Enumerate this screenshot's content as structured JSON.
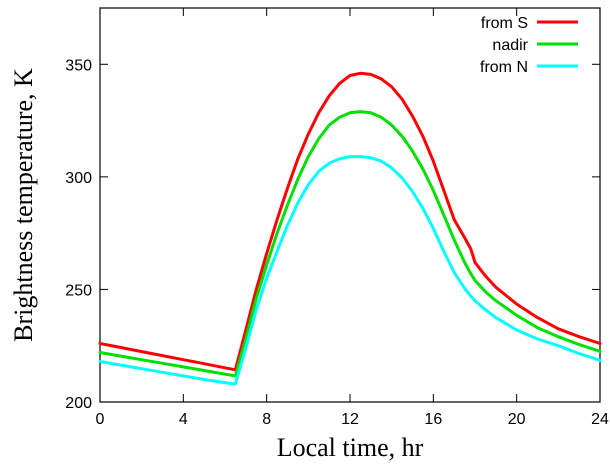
{
  "chart_data": {
    "type": "line",
    "xlabel": "Local time, hr",
    "ylabel": "Brightness temperature, K",
    "xlim": [
      0,
      24
    ],
    "ylim": [
      200,
      375
    ],
    "xticks": [
      0,
      4,
      8,
      12,
      16,
      20,
      24
    ],
    "yticks": [
      200,
      250,
      300,
      350
    ],
    "grid": false,
    "legend_position": "top-right",
    "series": [
      {
        "name": "from S",
        "color": "#ff0000",
        "x": [
          0,
          1,
          2,
          3,
          4,
          5,
          6,
          6.5,
          7,
          7.5,
          8,
          8.5,
          9,
          9.5,
          10,
          10.5,
          11,
          11.5,
          12,
          12.5,
          13,
          13.5,
          14,
          14.5,
          15,
          15.5,
          16,
          16.5,
          17,
          17.5,
          17.8,
          18,
          18.5,
          19,
          20,
          21,
          22,
          23,
          24
        ],
        "values": [
          226,
          224.2,
          222.4,
          220.6,
          218.8,
          217,
          215.2,
          214.3,
          232,
          250,
          266,
          281,
          295,
          308,
          319,
          328.5,
          336,
          341.5,
          345,
          346,
          345.5,
          343.5,
          340,
          334.5,
          327,
          318,
          307,
          294,
          281,
          273,
          268,
          262,
          256,
          251,
          243.5,
          237.5,
          232.5,
          229,
          226
        ]
      },
      {
        "name": "nadir",
        "color": "#00e000",
        "x": [
          0,
          1,
          2,
          3,
          4,
          5,
          6,
          6.5,
          7,
          7.5,
          8,
          8.5,
          9,
          9.5,
          10,
          10.5,
          11,
          11.5,
          12,
          12.5,
          13,
          13.5,
          14,
          14.5,
          15,
          15.5,
          16,
          16.5,
          17,
          17.5,
          17.8,
          18,
          18.5,
          19,
          20,
          21,
          22,
          23,
          24
        ],
        "values": [
          222,
          220.4,
          218.8,
          217.2,
          215.6,
          214,
          212.4,
          211.6,
          228,
          246,
          261,
          275,
          287.5,
          299,
          309,
          317,
          323,
          326.5,
          328.5,
          329,
          328.5,
          326.5,
          323,
          318,
          311.5,
          303.5,
          294,
          283,
          272,
          262,
          257,
          254,
          249,
          245,
          238.5,
          233,
          229,
          225.5,
          222.5
        ]
      },
      {
        "name": "from N",
        "color": "#00ffff",
        "x": [
          0,
          1,
          2,
          3,
          4,
          5,
          6,
          6.5,
          7,
          7.5,
          8,
          8.5,
          9,
          9.5,
          10,
          10.5,
          11,
          11.5,
          12,
          12.5,
          13,
          13.5,
          14,
          14.5,
          15,
          15.5,
          16,
          16.5,
          17,
          17.5,
          17.8,
          18,
          18.5,
          19,
          20,
          21,
          22,
          23,
          24
        ],
        "values": [
          218,
          216.4,
          214.8,
          213.2,
          211.6,
          210,
          208.6,
          208,
          224,
          241,
          255,
          267,
          278.5,
          288.5,
          296.5,
          302.5,
          306,
          308,
          309,
          309,
          308.5,
          307,
          304,
          299.5,
          293.5,
          286,
          277,
          267,
          257.5,
          250.5,
          247,
          245,
          241,
          237.5,
          232,
          228,
          225,
          221.5,
          218.5
        ]
      }
    ]
  }
}
